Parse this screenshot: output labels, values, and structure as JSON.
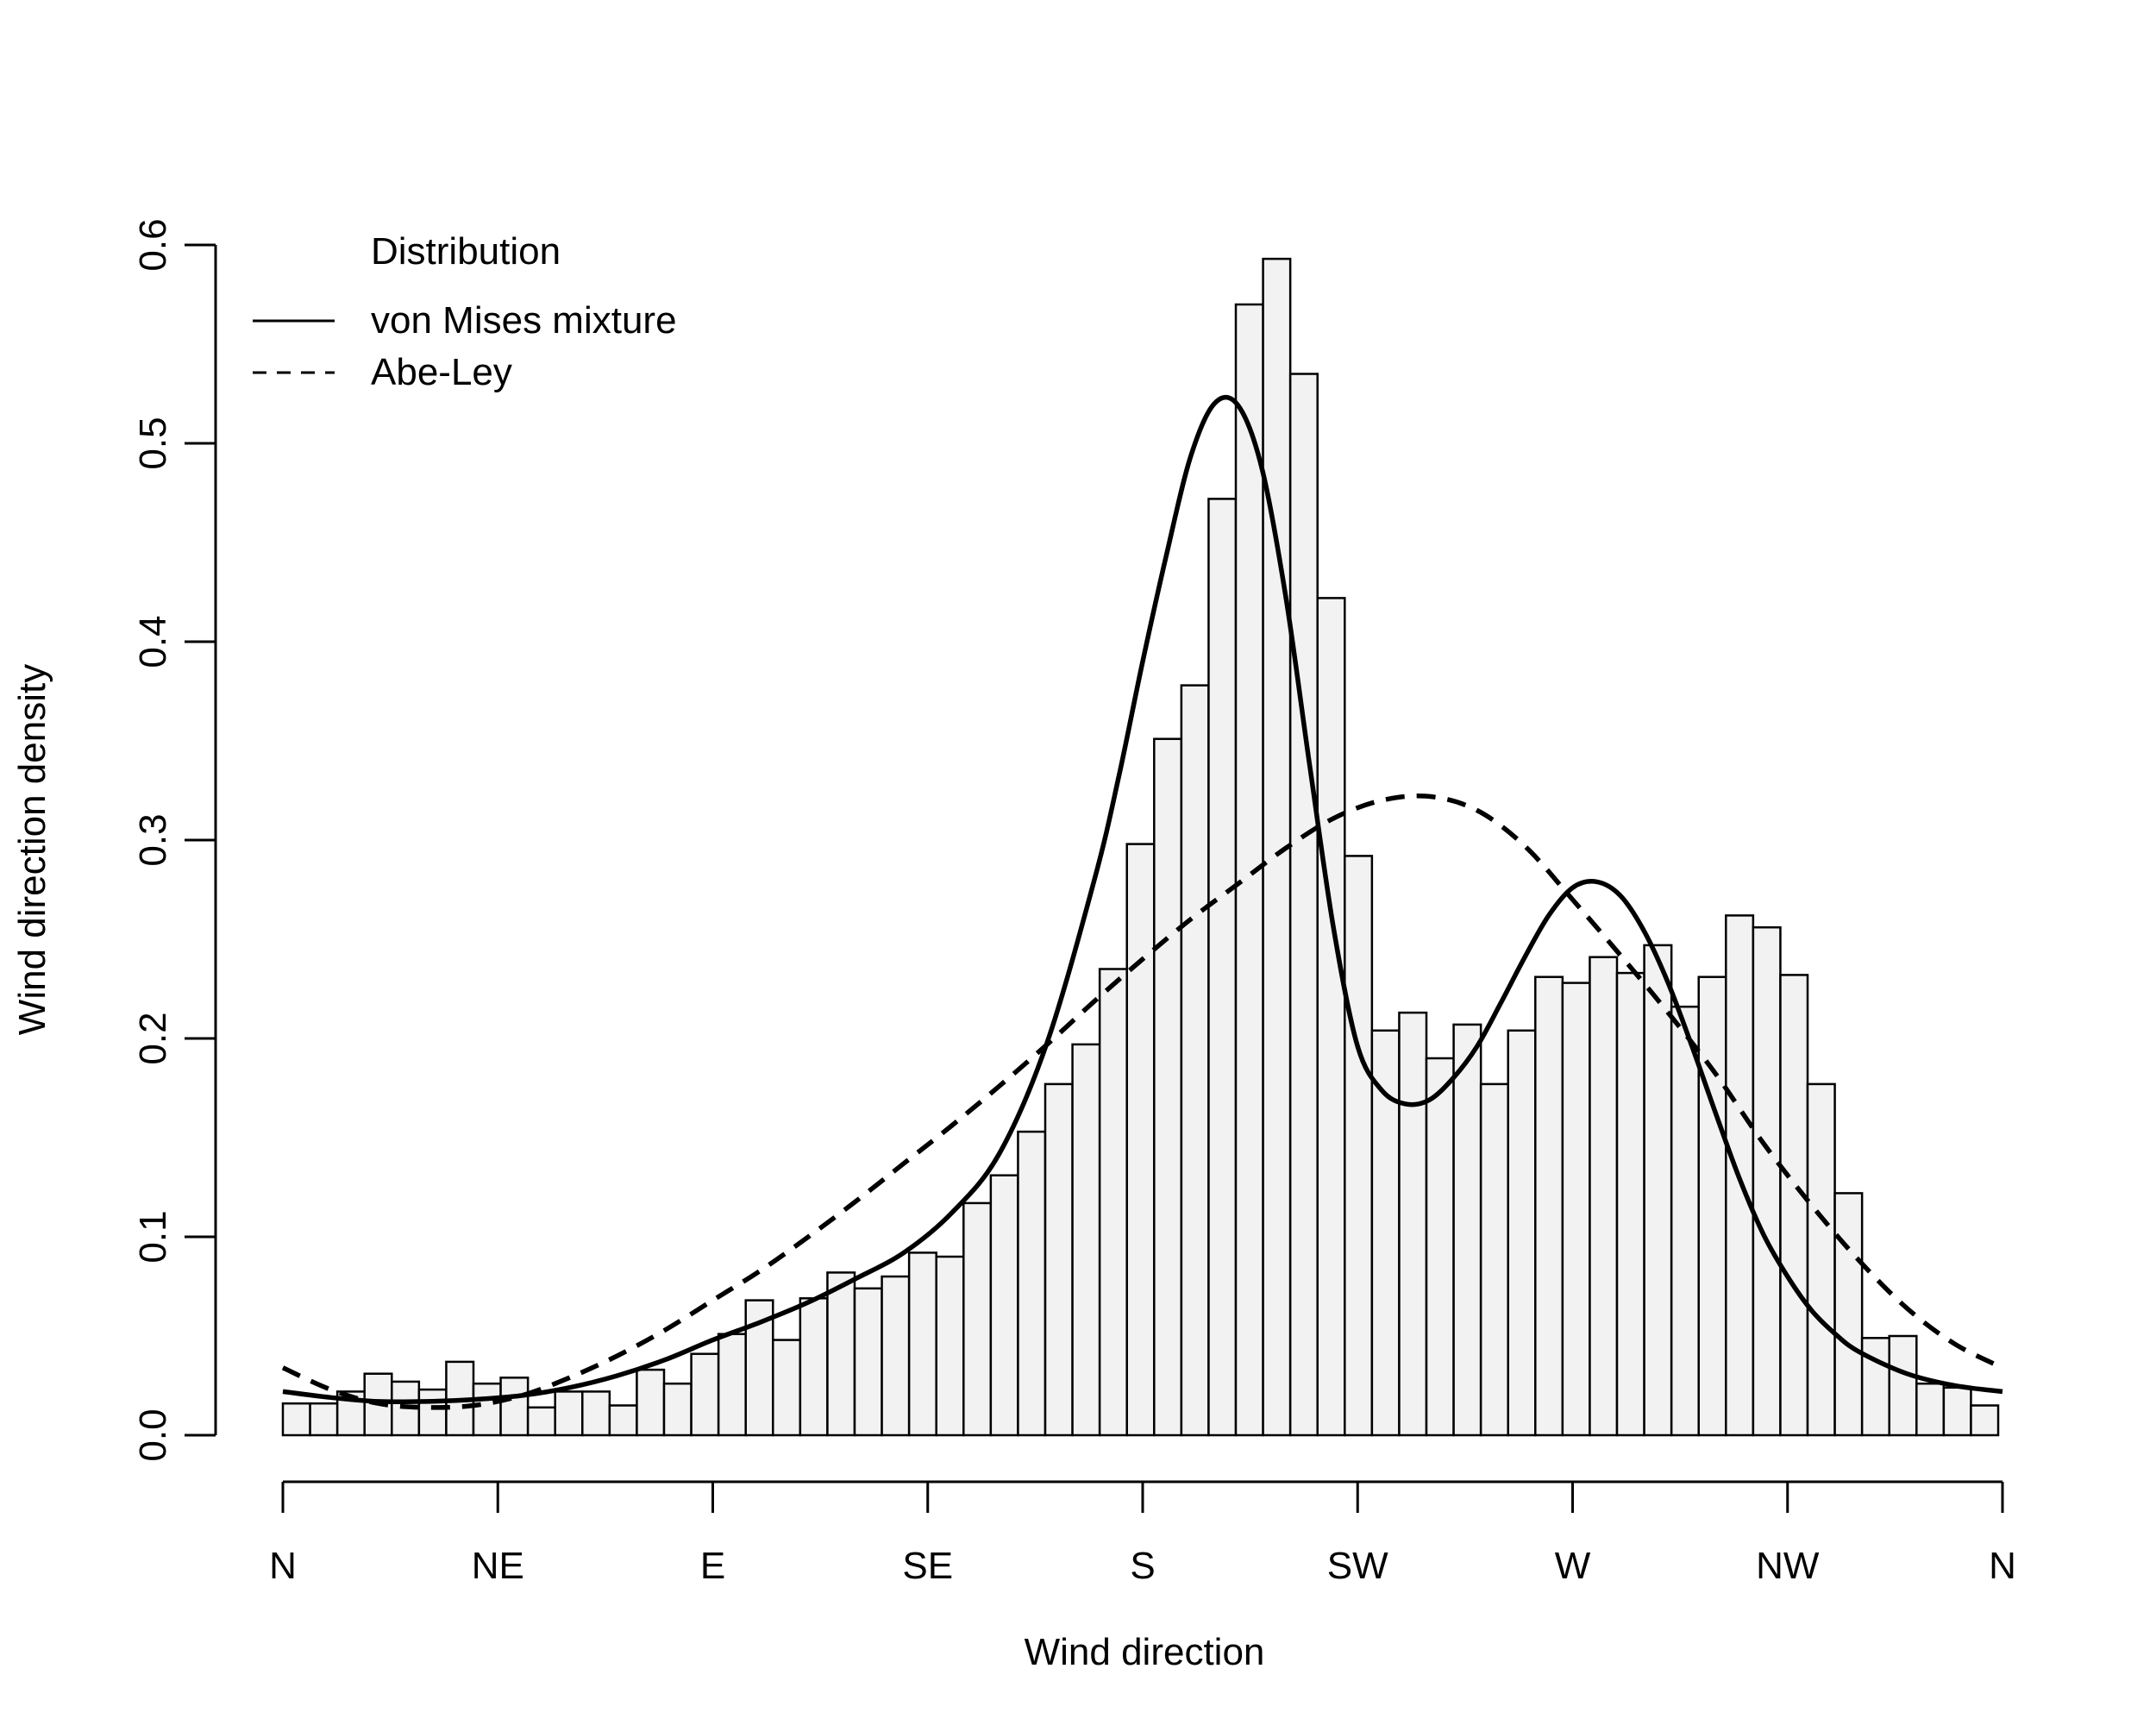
{
  "chart_data": {
    "type": "bar",
    "xlabel": "Wind direction",
    "ylabel": "Wind direction density",
    "ylim": [
      0,
      0.6
    ],
    "yticks": [
      "0.0",
      "0.1",
      "0.2",
      "0.3",
      "0.4",
      "0.5",
      "0.6"
    ],
    "xlim": [
      0,
      360
    ],
    "xticks": [
      {
        "deg": 0,
        "label": "N"
      },
      {
        "deg": 45,
        "label": "NE"
      },
      {
        "deg": 90,
        "label": "E"
      },
      {
        "deg": 135,
        "label": "SE"
      },
      {
        "deg": 180,
        "label": "S"
      },
      {
        "deg": 225,
        "label": "SW"
      },
      {
        "deg": 270,
        "label": "W"
      },
      {
        "deg": 315,
        "label": "NW"
      },
      {
        "deg": 360,
        "label": "N"
      }
    ],
    "grid": false,
    "histogram": {
      "bin_width_deg": 5.7,
      "values": [
        0.016,
        0.016,
        0.022,
        0.031,
        0.027,
        0.023,
        0.037,
        0.026,
        0.029,
        0.014,
        0.022,
        0.022,
        0.015,
        0.033,
        0.026,
        0.041,
        0.051,
        0.068,
        0.048,
        0.069,
        0.082,
        0.074,
        0.08,
        0.092,
        0.09,
        0.117,
        0.131,
        0.153,
        0.177,
        0.197,
        0.235,
        0.298,
        0.351,
        0.378,
        0.472,
        0.57,
        0.593,
        0.535,
        0.422,
        0.292,
        0.204,
        0.213,
        0.19,
        0.207,
        0.177,
        0.204,
        0.231,
        0.228,
        0.241,
        0.233,
        0.247,
        0.216,
        0.231,
        0.262,
        0.256,
        0.232,
        0.177,
        0.122,
        0.049,
        0.05,
        0.026,
        0.024,
        0.015
      ]
    },
    "legend": {
      "title": "Distribution",
      "position": "top-left",
      "entries": [
        {
          "label": "von Mises mixture",
          "line": "solid"
        },
        {
          "label": "Abe-Ley",
          "line": "dashed"
        }
      ]
    },
    "series": [
      {
        "name": "von Mises mixture",
        "line": "solid",
        "x": [
          0,
          10,
          20,
          30,
          40,
          50,
          60,
          70,
          80,
          90,
          100,
          110,
          120,
          130,
          140,
          150,
          160,
          170,
          175,
          180,
          185,
          190,
          195,
          200,
          205,
          210,
          215,
          220,
          225,
          230,
          235,
          240,
          245,
          250,
          255,
          260,
          265,
          270,
          275,
          280,
          285,
          290,
          295,
          300,
          305,
          310,
          315,
          320,
          325,
          330,
          340,
          350,
          360
        ],
        "y": [
          0.022,
          0.019,
          0.017,
          0.017,
          0.018,
          0.02,
          0.024,
          0.03,
          0.038,
          0.048,
          0.057,
          0.067,
          0.079,
          0.092,
          0.112,
          0.142,
          0.198,
          0.281,
          0.332,
          0.39,
          0.444,
          0.493,
          0.52,
          0.519,
          0.487,
          0.422,
          0.337,
          0.255,
          0.196,
          0.174,
          0.167,
          0.169,
          0.18,
          0.196,
          0.218,
          0.241,
          0.262,
          0.276,
          0.279,
          0.272,
          0.254,
          0.228,
          0.196,
          0.162,
          0.129,
          0.101,
          0.08,
          0.063,
          0.051,
          0.042,
          0.031,
          0.025,
          0.022
        ]
      },
      {
        "name": "Abe-Ley",
        "line": "dashed",
        "x": [
          0,
          10,
          20,
          30,
          40,
          50,
          60,
          70,
          80,
          90,
          100,
          110,
          120,
          130,
          140,
          150,
          160,
          170,
          180,
          190,
          200,
          210,
          220,
          230,
          240,
          250,
          260,
          270,
          280,
          290,
          300,
          310,
          320,
          330,
          340,
          350,
          360
        ],
        "y": [
          0.034,
          0.023,
          0.016,
          0.014,
          0.015,
          0.02,
          0.029,
          0.04,
          0.053,
          0.068,
          0.083,
          0.1,
          0.118,
          0.137,
          0.156,
          0.176,
          0.197,
          0.219,
          0.24,
          0.26,
          0.278,
          0.296,
          0.311,
          0.32,
          0.322,
          0.315,
          0.297,
          0.27,
          0.242,
          0.213,
          0.182,
          0.147,
          0.116,
          0.088,
          0.064,
          0.046,
          0.034
        ]
      }
    ]
  }
}
